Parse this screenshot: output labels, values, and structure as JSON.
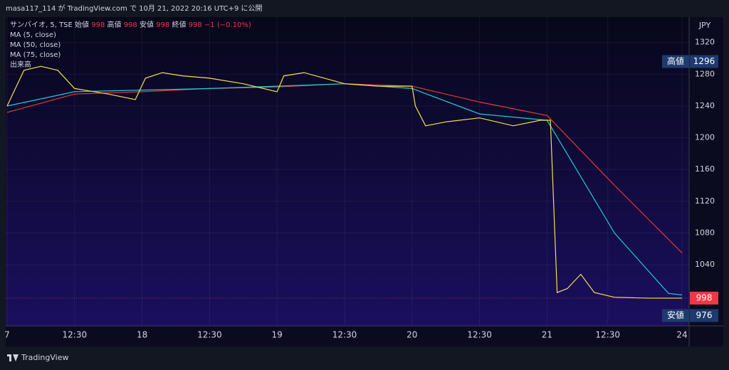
{
  "header": "masa117_114 が TradingView.com で 10月 21, 2022 20:16 UTC+9 に公開",
  "footer": "TradingView",
  "chart_data": {
    "type": "line",
    "legend": {
      "symbol": "サンバイオ, 5, TSE",
      "ohlc": [
        {
          "label": "始値",
          "value": 998
        },
        {
          "label": "高値",
          "value": 998
        },
        {
          "label": "安値",
          "value": 998
        },
        {
          "label": "終値",
          "value": 998
        }
      ],
      "change": "−1 (−0.10%)",
      "indicators": [
        "MA (5, close)",
        "MA (50, close)",
        "MA (75, close)",
        "出来高"
      ]
    },
    "y_axis_label": "JPY",
    "ylim": [
      963,
      1352
    ],
    "yticks": [
      1040,
      1080,
      1120,
      1160,
      1200,
      1240,
      1280,
      1320
    ],
    "xlim": [
      0,
      10
    ],
    "xticks": [
      {
        "value": 0,
        "label": "7"
      },
      {
        "value": 1,
        "label": "12:30"
      },
      {
        "value": 2,
        "label": "18"
      },
      {
        "value": 3,
        "label": "12:30"
      },
      {
        "value": 4,
        "label": "19"
      },
      {
        "value": 5,
        "label": "12:30"
      },
      {
        "value": 6,
        "label": "20"
      },
      {
        "value": 7,
        "label": "12:30"
      },
      {
        "value": 8,
        "label": "21"
      },
      {
        "value": 8.9,
        "label": "12:30"
      },
      {
        "value": 10,
        "label": "24"
      }
    ],
    "series": [
      {
        "name": "MA (5, close)",
        "color": "#f5e04a",
        "x": [
          0,
          0.25,
          0.5,
          0.75,
          1,
          1.5,
          1.9,
          2.05,
          2.3,
          2.6,
          3,
          3.5,
          4,
          4.1,
          4.4,
          5,
          5.5,
          6,
          6.05,
          6.2,
          6.5,
          7,
          7.5,
          7.9,
          8.05,
          8.15,
          8.3,
          8.5,
          8.7,
          9,
          9.5,
          10
        ],
        "values": [
          1240,
          1285,
          1290,
          1285,
          1262,
          1255,
          1248,
          1275,
          1282,
          1278,
          1275,
          1268,
          1258,
          1278,
          1282,
          1268,
          1265,
          1265,
          1240,
          1215,
          1220,
          1225,
          1215,
          1222,
          1222,
          1005,
          1010,
          1028,
          1005,
          999,
          998,
          998
        ]
      },
      {
        "name": "MA (50, close)",
        "color": "#26c6da",
        "x": [
          0,
          1,
          2,
          3,
          4,
          5,
          6,
          7,
          8,
          9,
          9.8,
          10
        ],
        "values": [
          1240,
          1258,
          1260,
          1262,
          1265,
          1268,
          1262,
          1230,
          1222,
          1080,
          1004,
          1002
        ]
      },
      {
        "name": "MA (75, close)",
        "color": "#e53935",
        "x": [
          0,
          1,
          2,
          3,
          4,
          5,
          6,
          7,
          8,
          9,
          10
        ],
        "values": [
          1232,
          1255,
          1258,
          1262,
          1264,
          1268,
          1265,
          1245,
          1228,
          1140,
          1055
        ]
      }
    ],
    "price_labels": [
      {
        "label": "高値",
        "value": 1296,
        "color": "#1e3a6e"
      },
      {
        "label": "安値",
        "value": 976,
        "color": "#1e3a6e"
      },
      {
        "value": 998,
        "color": "#f23645"
      }
    ]
  }
}
